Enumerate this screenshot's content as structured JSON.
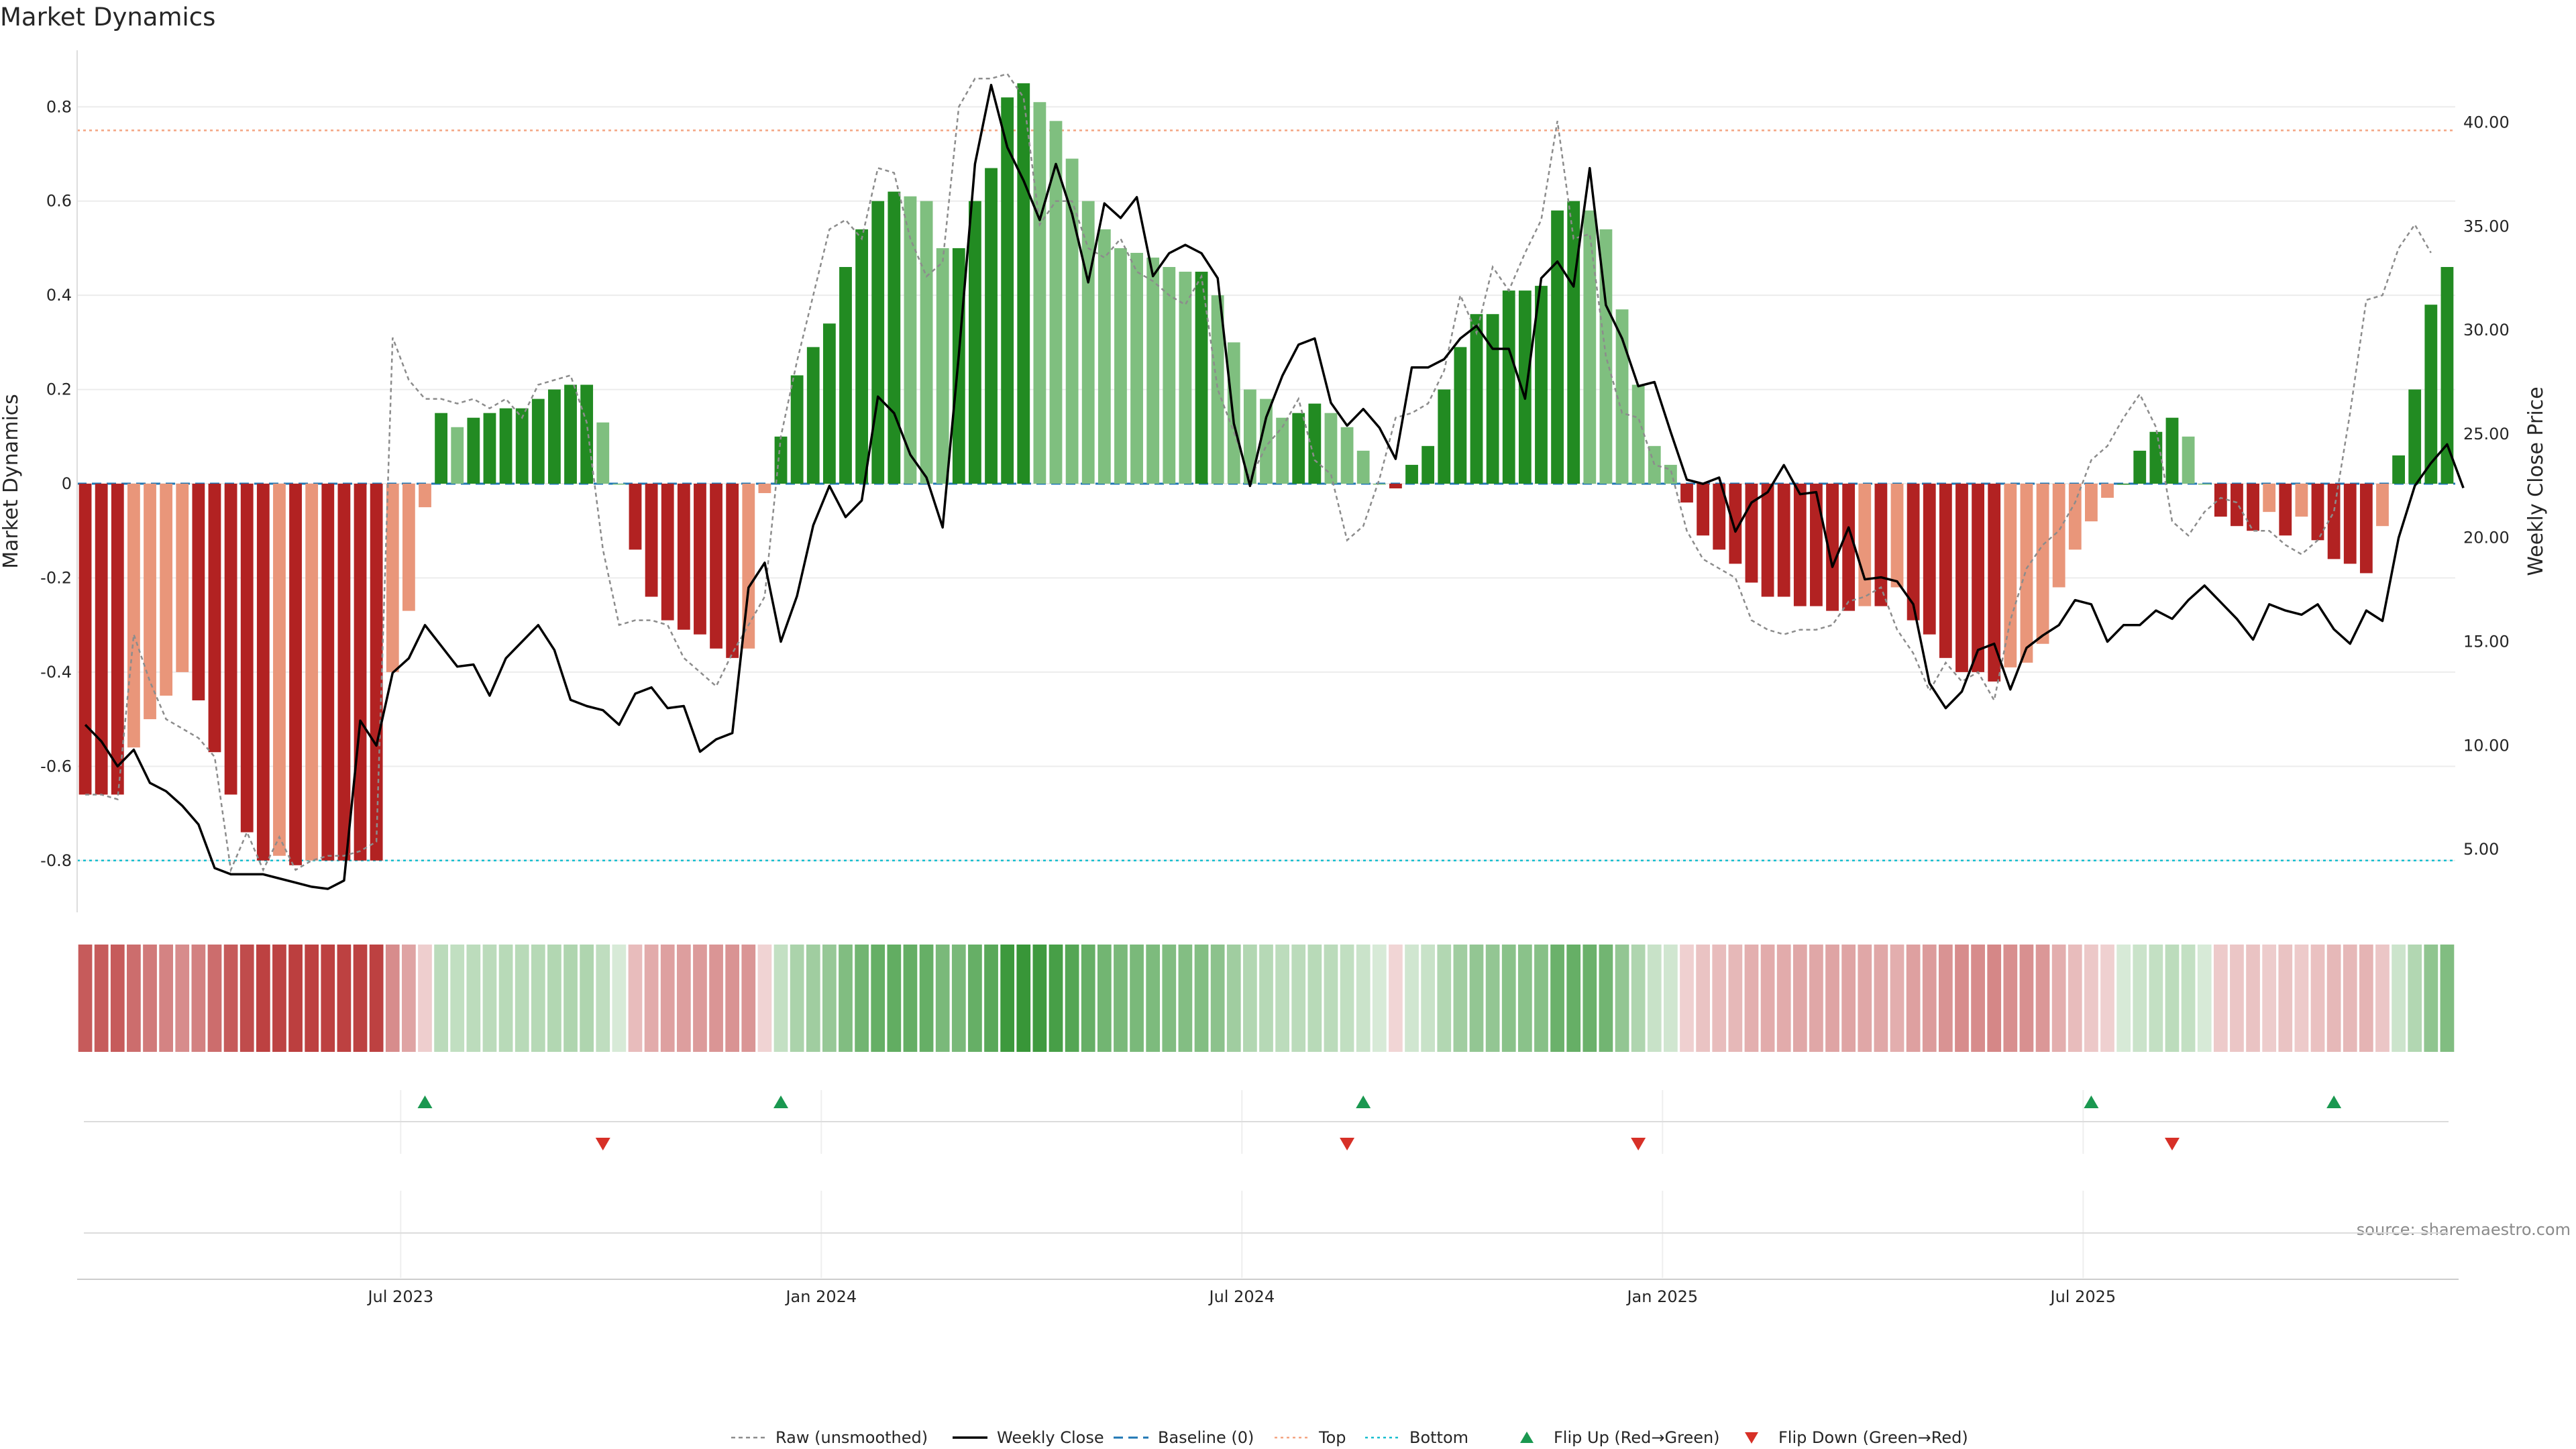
{
  "chart_data": {
    "type": "bar",
    "title": "Market Dynamics",
    "source": "source: sharemaestro.com",
    "ylabel": "Market Dynamics",
    "y2label": "Weekly Close Price",
    "ylim": [
      -0.91,
      0.92
    ],
    "y2lim": [
      1.97,
      43.47
    ],
    "yticks": [
      -0.8,
      -0.6,
      -0.4,
      -0.2,
      0,
      0.2,
      0.4,
      0.6,
      0.8
    ],
    "y2ticks": [
      5.0,
      10.0,
      15.0,
      20.0,
      25.0,
      30.0,
      35.0,
      40.0
    ],
    "top_line": 0.75,
    "bottom_line": -0.8,
    "baseline": 0,
    "xticks": [
      {
        "label": "Jul 2023",
        "week": 20
      },
      {
        "label": "Jan 2024",
        "week": 46
      },
      {
        "label": "Jul 2024",
        "week": 72
      },
      {
        "label": "Jan 2025",
        "week": 98
      },
      {
        "label": "Jul 2025",
        "week": 124
      }
    ],
    "colors": {
      "strong_up": "#228b22",
      "weak_up": "#7fbf7f",
      "strong_down": "#b22222",
      "weak_down": "#e9967a",
      "raw": "#8c8c8c",
      "close": "#000000",
      "baseline": "#1f77b4",
      "top": "#f4a582",
      "bottom": "#17becf",
      "flip_up": "#1a9850",
      "flip_down": "#d73027"
    },
    "series": [
      {
        "name": "Market Dynamics (smoothed)",
        "values": [
          -0.66,
          -0.66,
          -0.66,
          -0.56,
          -0.5,
          -0.45,
          -0.4,
          -0.46,
          -0.57,
          -0.66,
          -0.74,
          -0.8,
          -0.79,
          -0.81,
          -0.8,
          -0.8,
          -0.8,
          -0.8,
          -0.8,
          -0.4,
          -0.27,
          -0.05,
          0.15,
          0.12,
          0.14,
          0.15,
          0.16,
          0.16,
          0.18,
          0.2,
          0.21,
          0.21,
          0.13,
          0.0,
          -0.14,
          -0.24,
          -0.29,
          -0.31,
          -0.32,
          -0.35,
          -0.37,
          -0.35,
          -0.02,
          0.1,
          0.23,
          0.29,
          0.34,
          0.46,
          0.54,
          0.6,
          0.62,
          0.61,
          0.6,
          0.5,
          0.5,
          0.6,
          0.67,
          0.82,
          0.85,
          0.81,
          0.77,
          0.69,
          0.6,
          0.54,
          0.5,
          0.49,
          0.48,
          0.46,
          0.45,
          0.45,
          0.4,
          0.3,
          0.2,
          0.18,
          0.14,
          0.15,
          0.17,
          0.15,
          0.12,
          0.07,
          0.0,
          -0.01,
          0.04,
          0.08,
          0.2,
          0.29,
          0.36,
          0.36,
          0.41,
          0.41,
          0.42,
          0.58,
          0.6,
          0.58,
          0.54,
          0.37,
          0.21,
          0.08,
          0.04,
          -0.04,
          -0.11,
          -0.14,
          -0.17,
          -0.21,
          -0.24,
          -0.24,
          -0.26,
          -0.26,
          -0.27,
          -0.27,
          -0.26,
          -0.26,
          -0.22,
          -0.29,
          -0.32,
          -0.37,
          -0.4,
          -0.4,
          -0.42,
          -0.39,
          -0.38,
          -0.34,
          -0.22,
          -0.14,
          -0.08,
          -0.03,
          0.0,
          0.07,
          0.11,
          0.14,
          0.1,
          0.0,
          -0.07,
          -0.09,
          -0.1,
          -0.06,
          -0.11,
          -0.07,
          -0.12,
          -0.16,
          -0.17,
          -0.19,
          -0.09,
          0.06,
          0.2,
          0.38,
          0.46
        ]
      },
      {
        "name": "Raw (unsmoothed)",
        "values": [
          -0.66,
          -0.66,
          -0.67,
          -0.32,
          -0.42,
          -0.5,
          -0.52,
          -0.54,
          -0.58,
          -0.82,
          -0.74,
          -0.82,
          -0.75,
          -0.82,
          -0.8,
          -0.79,
          -0.79,
          -0.78,
          -0.76,
          0.31,
          0.22,
          0.18,
          0.18,
          0.17,
          0.18,
          0.16,
          0.18,
          0.14,
          0.21,
          0.22,
          0.23,
          0.13,
          -0.14,
          -0.3,
          -0.29,
          -0.29,
          -0.3,
          -0.37,
          -0.4,
          -0.43,
          -0.36,
          -0.3,
          -0.24,
          0.1,
          0.26,
          0.4,
          0.54,
          0.56,
          0.52,
          0.67,
          0.66,
          0.52,
          0.44,
          0.47,
          0.8,
          0.86,
          0.86,
          0.87,
          0.82,
          0.55,
          0.6,
          0.6,
          0.5,
          0.48,
          0.52,
          0.45,
          0.43,
          0.4,
          0.38,
          0.44,
          0.2,
          0.11,
          0.01,
          0.08,
          0.12,
          0.18,
          0.05,
          0.02,
          -0.12,
          -0.09,
          0.01,
          0.14,
          0.15,
          0.17,
          0.24,
          0.4,
          0.32,
          0.46,
          0.41,
          0.49,
          0.56,
          0.77,
          0.52,
          0.53,
          0.27,
          0.15,
          0.14,
          0.04,
          0.03,
          -0.1,
          -0.16,
          -0.18,
          -0.2,
          -0.29,
          -0.31,
          -0.32,
          -0.31,
          -0.31,
          -0.3,
          -0.25,
          -0.24,
          -0.22,
          -0.31,
          -0.36,
          -0.44,
          -0.38,
          -0.42,
          -0.4,
          -0.46,
          -0.29,
          -0.18,
          -0.13,
          -0.1,
          -0.04,
          0.05,
          0.08,
          0.14,
          0.19,
          0.12,
          -0.08,
          -0.11,
          -0.06,
          -0.03,
          -0.04,
          -0.1,
          -0.1,
          -0.13,
          -0.15,
          -0.12,
          -0.06,
          0.15,
          0.39,
          0.4,
          0.5,
          0.55,
          0.49
        ]
      },
      {
        "name": "Weekly Close",
        "values": [
          11.0,
          10.2,
          9.0,
          9.8,
          8.2,
          7.8,
          7.1,
          6.2,
          4.1,
          3.8,
          3.8,
          3.8,
          3.6,
          3.4,
          3.2,
          3.1,
          3.5,
          11.2,
          10.0,
          13.5,
          14.2,
          15.8,
          14.8,
          13.8,
          13.9,
          12.4,
          14.2,
          15.0,
          15.8,
          14.6,
          12.2,
          11.9,
          11.7,
          11.0,
          12.5,
          12.8,
          11.8,
          11.9,
          9.7,
          10.3,
          10.6,
          17.6,
          18.8,
          15.0,
          17.2,
          20.6,
          22.5,
          21.0,
          21.8,
          26.8,
          26.0,
          24.0,
          22.9,
          20.5,
          28.8,
          38.0,
          41.8,
          38.8,
          37.2,
          35.3,
          38.0,
          35.6,
          32.3,
          36.1,
          35.4,
          36.4,
          32.6,
          33.7,
          34.1,
          33.7,
          32.5,
          25.5,
          22.5,
          25.8,
          27.8,
          29.3,
          29.6,
          26.5,
          25.4,
          26.2,
          25.3,
          23.8,
          28.2,
          28.2,
          28.6,
          29.6,
          30.2,
          29.1,
          29.1,
          26.7,
          32.5,
          33.3,
          32.1,
          37.8,
          31.2,
          29.6,
          27.3,
          27.5,
          25.1,
          22.8,
          22.6,
          22.9,
          20.3,
          21.7,
          22.2,
          23.5,
          22.1,
          22.2,
          18.6,
          20.5,
          18.0,
          18.1,
          17.9,
          16.8,
          13.0,
          11.8,
          12.6,
          14.6,
          14.9,
          12.7,
          14.7,
          15.3,
          15.8,
          17.0,
          16.8,
          15.0,
          15.8,
          15.8,
          16.5,
          16.1,
          17.0,
          17.7,
          16.9,
          16.1,
          15.1,
          16.8,
          16.5,
          16.3,
          16.8,
          15.6,
          14.9,
          16.5,
          16.0,
          20.0,
          22.5,
          23.6,
          24.5,
          22.4
        ]
      }
    ],
    "flips": [
      {
        "type": "up",
        "week": 21
      },
      {
        "type": "down",
        "week": 32
      },
      {
        "type": "up",
        "week": 43
      },
      {
        "type": "down",
        "week": 78
      },
      {
        "type": "up",
        "week": 79
      },
      {
        "type": "down",
        "week": 96
      },
      {
        "type": "up",
        "week": 124
      },
      {
        "type": "down",
        "week": 129
      },
      {
        "type": "up",
        "week": 139
      }
    ]
  },
  "legend": [
    {
      "label": "Raw (unsmoothed)",
      "kind": "raw"
    },
    {
      "label": "Weekly Close",
      "kind": "close"
    },
    {
      "label": "Baseline (0)",
      "kind": "baseline"
    },
    {
      "label": "Top",
      "kind": "top"
    },
    {
      "label": "Bottom",
      "kind": "bottom"
    },
    {
      "label": "Flip Up (Red→Green)",
      "kind": "flip_up"
    },
    {
      "label": "Flip Down (Green→Red)",
      "kind": "flip_down"
    }
  ]
}
